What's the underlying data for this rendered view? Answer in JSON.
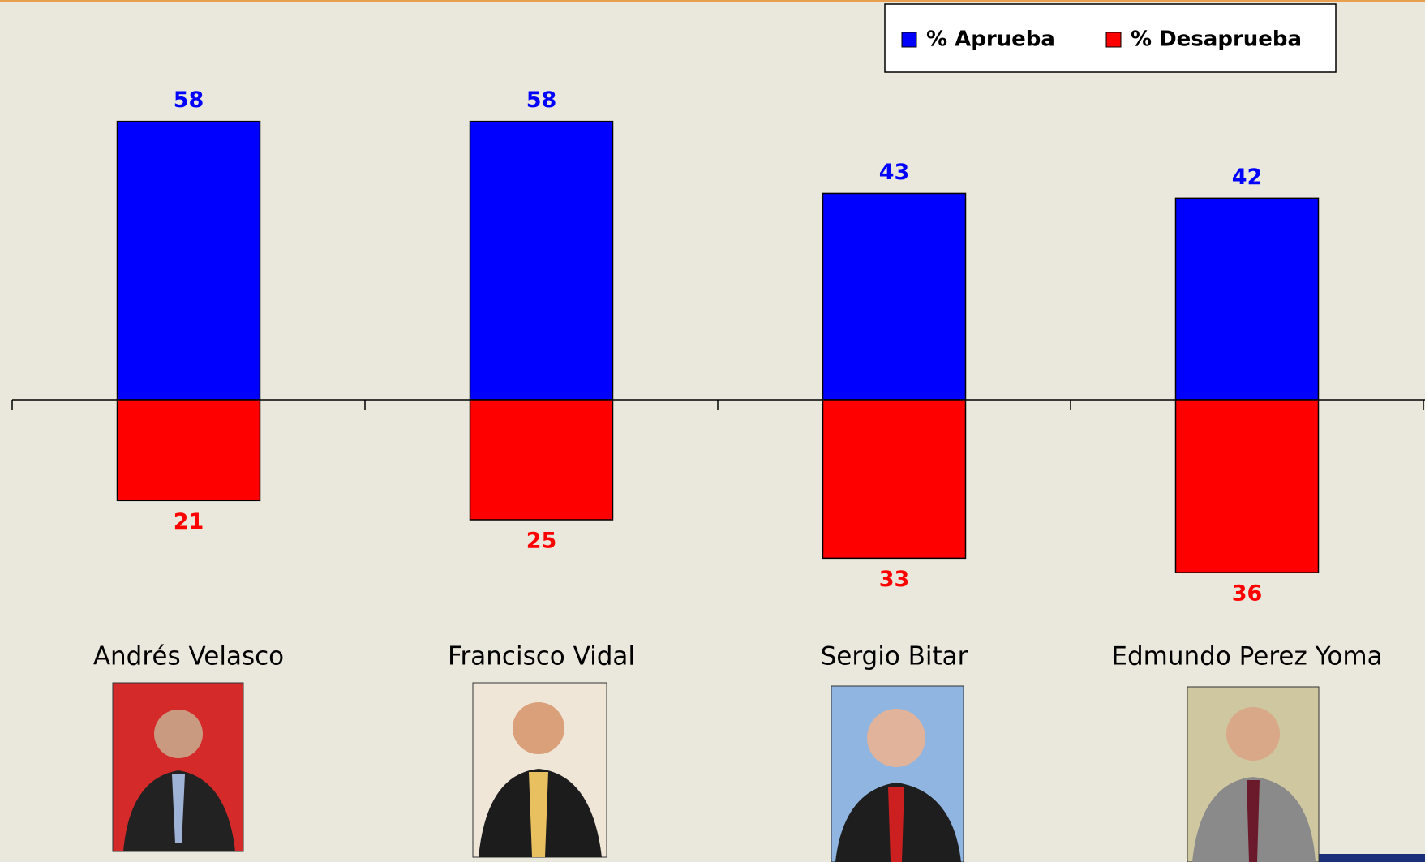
{
  "chart_data": {
    "type": "bar",
    "categories": [
      "Andrés Velasco",
      "Francisco Vidal",
      "Sergio Bitar",
      "Edmundo Perez Yoma"
    ],
    "series": [
      {
        "name": "% Aprueba",
        "color": "#0000ff",
        "values": [
          58,
          58,
          43,
          42
        ]
      },
      {
        "name": "% Desaprueba",
        "color": "#ff0000",
        "values": [
          21,
          25,
          33,
          36
        ]
      }
    ]
  }
}
